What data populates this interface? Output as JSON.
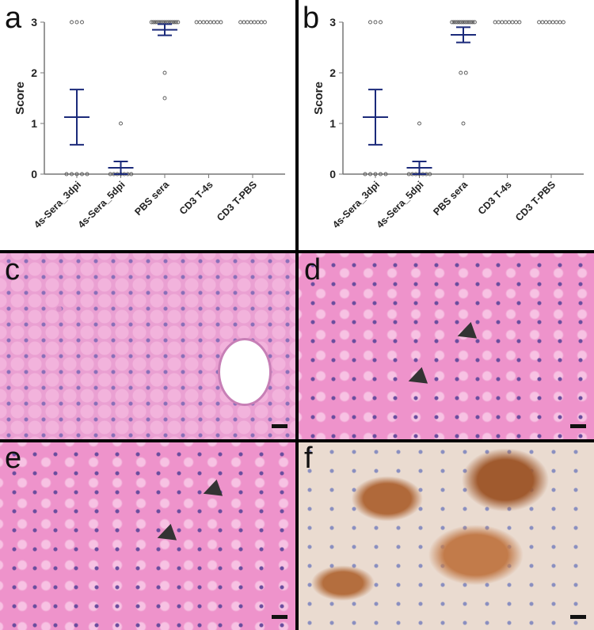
{
  "panels": {
    "a": "a",
    "b": "b",
    "c": "c",
    "d": "d",
    "e": "e",
    "f": "f"
  },
  "chart_data": [
    {
      "type": "scatter",
      "panel": "a",
      "ylabel": "Score",
      "ylim": [
        0,
        3
      ],
      "yticks": [
        "0",
        "1",
        "2",
        "3"
      ],
      "categories": [
        "4s-Sera_3dpi",
        "4s-Sera_5dpi",
        "PBS sera",
        "CD3 T-4s",
        "CD3 T-PBS"
      ],
      "points": [
        [
          3,
          3,
          3,
          0,
          0,
          0,
          0,
          0
        ],
        [
          1,
          0,
          0,
          0,
          0,
          0,
          0,
          0
        ],
        [
          3,
          3,
          3,
          3,
          3,
          3,
          3,
          3,
          3,
          3,
          3,
          3,
          3,
          3,
          3,
          2,
          1.5
        ],
        [
          3,
          3,
          3,
          3,
          3,
          3,
          3,
          3
        ],
        [
          3,
          3,
          3,
          3,
          3,
          3,
          3,
          3
        ]
      ],
      "mean": [
        1.125,
        0.125,
        2.85,
        3,
        3
      ],
      "error_low": [
        0.58,
        0,
        2.74,
        3,
        3
      ],
      "error_high": [
        1.67,
        0.25,
        2.96,
        3,
        3
      ],
      "errorbar_color": "#1b2a7a"
    },
    {
      "type": "scatter",
      "panel": "b",
      "ylabel": "Score",
      "ylim": [
        0,
        3
      ],
      "yticks": [
        "0",
        "1",
        "2",
        "3"
      ],
      "categories": [
        "4s-Sera_3dpi",
        "4s-Sera_5dpi",
        "PBS sera",
        "CD3 T-4s",
        "CD3 T-PBS"
      ],
      "points": [
        [
          3,
          3,
          3,
          0,
          0,
          0,
          0,
          0
        ],
        [
          1,
          0,
          0,
          0,
          0,
          0,
          0,
          0
        ],
        [
          3,
          3,
          3,
          3,
          3,
          3,
          3,
          3,
          3,
          3,
          3,
          3,
          3,
          2,
          2,
          1
        ],
        [
          3,
          3,
          3,
          3,
          3,
          3,
          3,
          3
        ],
        [
          3,
          3,
          3,
          3,
          3,
          3,
          3,
          3
        ]
      ],
      "mean": [
        1.125,
        0.125,
        2.75,
        3,
        3
      ],
      "error_low": [
        0.58,
        0,
        2.6,
        3,
        3
      ],
      "error_high": [
        1.67,
        0.25,
        2.9,
        3,
        3
      ],
      "errorbar_color": "#1b2a7a"
    }
  ]
}
